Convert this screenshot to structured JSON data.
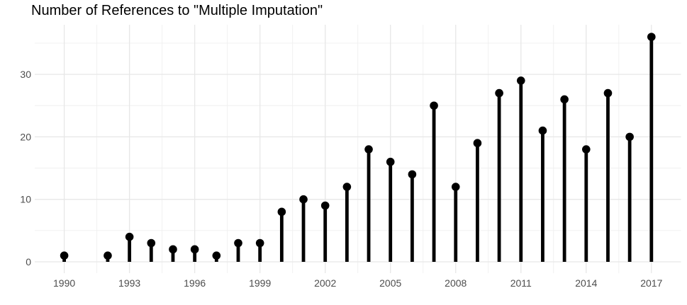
{
  "page": {
    "background": "#ffffff"
  },
  "chart_data": {
    "type": "scatter",
    "variant": "lollipop",
    "title": "Number of References to \"Multiple Imputation\"",
    "xlabel": "",
    "ylabel": "",
    "x": [
      1990,
      1992,
      1993,
      1994,
      1995,
      1996,
      1997,
      1998,
      1999,
      2000,
      2001,
      2002,
      2003,
      2004,
      2005,
      2006,
      2007,
      2008,
      2009,
      2010,
      2011,
      2012,
      2013,
      2014,
      2015,
      2016,
      2017
    ],
    "y": [
      1,
      1,
      4,
      3,
      2,
      2,
      1,
      3,
      3,
      8,
      10,
      9,
      12,
      18,
      16,
      14,
      25,
      12,
      19,
      27,
      29,
      21,
      26,
      18,
      27,
      20,
      36
    ],
    "missing_years": [
      1991
    ],
    "xlim": [
      1988.65,
      2018.35
    ],
    "ylim": [
      -1.8,
      37.8
    ],
    "x_axis": {
      "tick_values": [
        1990,
        1993,
        1996,
        1999,
        2002,
        2005,
        2008,
        2011,
        2014,
        2017
      ],
      "tick_labels": [
        "1990",
        "1993",
        "1996",
        "1999",
        "2002",
        "2005",
        "2008",
        "2011",
        "2014",
        "2017"
      ],
      "minor_breaks": [
        1991.5,
        1994.5,
        1997.5,
        2000.5,
        2003.5,
        2006.5,
        2009.5,
        2012.5,
        2015.5
      ]
    },
    "y_axis": {
      "tick_values": [
        0,
        10,
        20,
        30
      ],
      "tick_labels": [
        "0",
        "10",
        "20",
        "30"
      ],
      "minor_breaks": [
        5,
        15,
        25,
        35
      ]
    },
    "grid": "major+minor",
    "legend": "none",
    "colors": {
      "point": "#000000",
      "stem": "#000000",
      "grid_major": "#e7e7e7",
      "grid_minor": "#efefef",
      "axis_text": "#4d4d4d",
      "title": "#000000",
      "background": "#ffffff"
    }
  }
}
